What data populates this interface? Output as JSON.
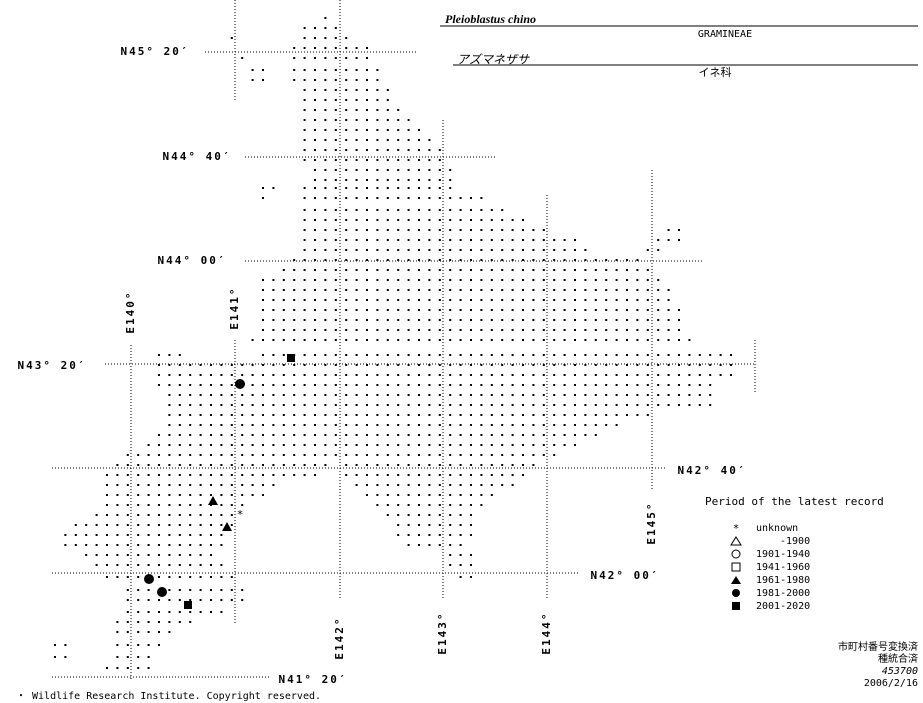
{
  "header": {
    "species": "Pleioblastus chino",
    "family": "GRAMINEAE",
    "japanese_name": "アズマネザサ",
    "japanese_family": "イネ科"
  },
  "latitudes": [
    "N45° 20′",
    "N44° 40′",
    "N44° 00′",
    "N43° 20′",
    "N42° 40′",
    "N42° 00′",
    "N41° 20′"
  ],
  "longitudes": [
    "E140°",
    "E141°",
    "E142°",
    "E143°",
    "E144°",
    "E145°"
  ],
  "legend": {
    "title": "Period of the latest record",
    "items": [
      "unknown",
      "-1900",
      "1901-1940",
      "1941-1960",
      "1961-1980",
      "1981-2000",
      "2001-2020"
    ]
  },
  "footer": {
    "notes": [
      "市町村番号変換済",
      "種統合済",
      "453700",
      "2006/2/16"
    ],
    "copyright": "・ Wildlife Research Institute. Copyright reserved."
  }
}
